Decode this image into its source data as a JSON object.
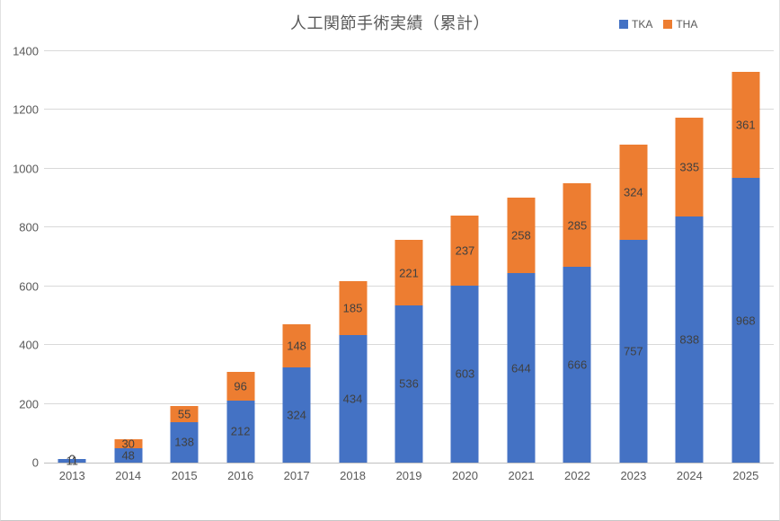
{
  "title": "人工関節手術実績（累計）",
  "colors": {
    "tka": "#4472C4",
    "tha": "#ED7D31",
    "gridline": "#D9D9D9",
    "axis_text": "#595959",
    "data_label": "#404040"
  },
  "chart_data": {
    "type": "bar",
    "stacked": true,
    "title": "人工関節手術実績（累計）",
    "categories": [
      "2013",
      "2014",
      "2015",
      "2016",
      "2017",
      "2018",
      "2019",
      "2020",
      "2021",
      "2022",
      "2023",
      "2024",
      "2025"
    ],
    "series": [
      {
        "name": "TKA",
        "color": "#4472C4",
        "values": [
          11,
          48,
          138,
          212,
          324,
          434,
          536,
          603,
          644,
          666,
          757,
          838,
          968
        ]
      },
      {
        "name": "THA",
        "color": "#ED7D31",
        "values": [
          2,
          30,
          55,
          96,
          148,
          185,
          221,
          237,
          258,
          285,
          324,
          335,
          361
        ]
      }
    ],
    "xlabel": "",
    "ylabel": "",
    "ylim": [
      0,
      1400
    ],
    "ytick_step": 200,
    "yticks": [
      "0",
      "200",
      "400",
      "600",
      "800",
      "1000",
      "1200",
      "1400"
    ],
    "grid": true,
    "legend_position": "top-right",
    "data_labels": "inside-center"
  }
}
